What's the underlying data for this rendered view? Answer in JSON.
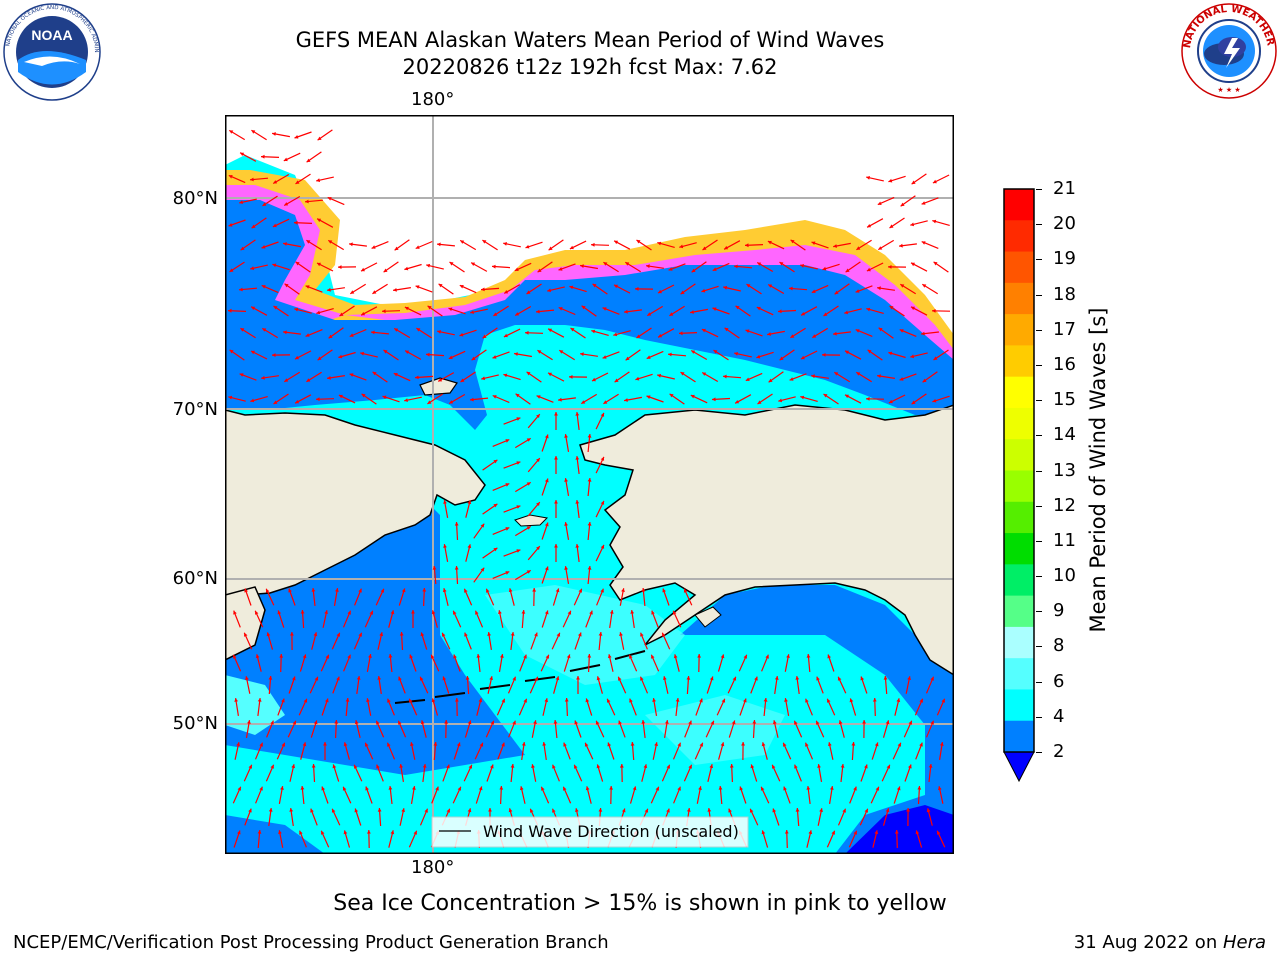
{
  "title": {
    "line1": "GEFS MEAN Alaskan Waters Mean Period of Wind Waves",
    "line2": "20220826 t12z 192h fcst   Max: 7.62"
  },
  "logos": {
    "left": {
      "name": "noaa-logo",
      "text": "NOAA",
      "ring_text": "NATIONAL OCEANIC AND ATMOSPHERIC ADMINISTRATION · U.S. DEPARTMENT OF COMMERCE"
    },
    "right": {
      "name": "nws-logo",
      "ring_text": "NATIONAL WEATHER SERVICE"
    }
  },
  "map": {
    "lat_labels": [
      "80°N",
      "70°N",
      "60°N",
      "50°N"
    ],
    "lon_top": "180°",
    "lon_bottom": "180°",
    "legend": "Wind Wave Direction (unscaled)",
    "arrow_color": "#ff0000",
    "land_color": "#efecdc",
    "ocean_colors": {
      "2-4": "#0080ff",
      "4-6": "#00ffff",
      "6-8": "#55ffff",
      "below-2": "#0000ff"
    },
    "ice_colors": [
      "#ff66ff",
      "#ff99cc",
      "#ffcc33",
      "#ffff00"
    ]
  },
  "colorbar": {
    "label": "Mean Period of Wind Waves [s]",
    "ticks": [
      "21",
      "20",
      "19",
      "18",
      "17",
      "16",
      "15",
      "14",
      "13",
      "12",
      "11",
      "10",
      "9",
      "8",
      "6",
      "4",
      "2"
    ],
    "colors": [
      "#ff0000",
      "#ff2a00",
      "#ff5500",
      "#ff8000",
      "#ffaa00",
      "#ffcc00",
      "#ffff00",
      "#eeff00",
      "#ccff00",
      "#99ff00",
      "#55ee00",
      "#00dd00",
      "#00ee66",
      "#55ff88",
      "#aaffff",
      "#55ffff",
      "#00ffff",
      "#0080ff"
    ],
    "under_color": "#0000ff"
  },
  "caption": "Sea Ice Concentration > 15% is shown in pink to yellow",
  "footer": {
    "left": "NCEP/EMC/Verification Post Processing Product Generation Branch",
    "date": "31 Aug 2022 on ",
    "machine": "Hera"
  }
}
